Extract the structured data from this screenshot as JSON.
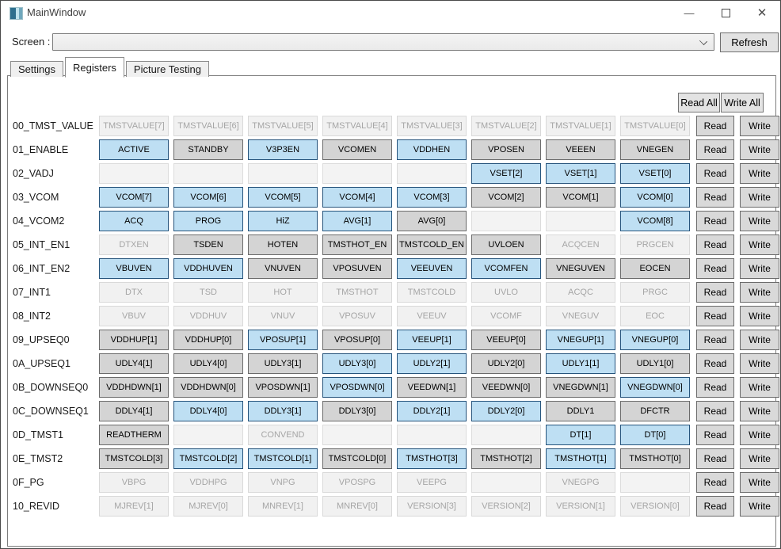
{
  "window": {
    "title": "MainWindow"
  },
  "toolbar": {
    "screen_label": "Screen :",
    "combo_value": "",
    "refresh_label": "Refresh"
  },
  "tabs": [
    {
      "label": "Settings",
      "active": false
    },
    {
      "label": "Registers",
      "active": true
    },
    {
      "label": "Picture Testing",
      "active": false
    }
  ],
  "actions": {
    "read_all": "Read All",
    "write_all": "Write All",
    "read": "Read",
    "write": "Write"
  },
  "colors": {
    "bit_on_bg": "#bedff3",
    "bit_on_border": "#26547c",
    "bit_off_bg": "#d4d4d4",
    "bit_disabled_text": "#a5a5a5"
  },
  "registers": [
    {
      "name": "00_TMST_VALUE",
      "bits": [
        {
          "label": "TMSTVALUE[7]",
          "state": "disabled"
        },
        {
          "label": "TMSTVALUE[6]",
          "state": "disabled"
        },
        {
          "label": "TMSTVALUE[5]",
          "state": "disabled"
        },
        {
          "label": "TMSTVALUE[4]",
          "state": "disabled"
        },
        {
          "label": "TMSTVALUE[3]",
          "state": "disabled"
        },
        {
          "label": "TMSTVALUE[2]",
          "state": "disabled"
        },
        {
          "label": "TMSTVALUE[1]",
          "state": "disabled"
        },
        {
          "label": "TMSTVALUE[0]",
          "state": "disabled"
        }
      ]
    },
    {
      "name": "01_ENABLE",
      "bits": [
        {
          "label": "ACTIVE",
          "state": "on"
        },
        {
          "label": "STANDBY",
          "state": "off"
        },
        {
          "label": "V3P3EN",
          "state": "on"
        },
        {
          "label": "VCOMEN",
          "state": "off"
        },
        {
          "label": "VDDHEN",
          "state": "on"
        },
        {
          "label": "VPOSEN",
          "state": "off"
        },
        {
          "label": "VEEEN",
          "state": "off"
        },
        {
          "label": "VNEGEN",
          "state": "off"
        }
      ]
    },
    {
      "name": "02_VADJ",
      "bits": [
        {
          "label": "",
          "state": "empty"
        },
        {
          "label": "",
          "state": "empty"
        },
        {
          "label": "",
          "state": "empty"
        },
        {
          "label": "",
          "state": "empty"
        },
        {
          "label": "",
          "state": "empty"
        },
        {
          "label": "VSET[2]",
          "state": "on"
        },
        {
          "label": "VSET[1]",
          "state": "on"
        },
        {
          "label": "VSET[0]",
          "state": "on"
        }
      ]
    },
    {
      "name": "03_VCOM",
      "bits": [
        {
          "label": "VCOM[7]",
          "state": "on"
        },
        {
          "label": "VCOM[6]",
          "state": "on"
        },
        {
          "label": "VCOM[5]",
          "state": "on"
        },
        {
          "label": "VCOM[4]",
          "state": "on"
        },
        {
          "label": "VCOM[3]",
          "state": "on"
        },
        {
          "label": "VCOM[2]",
          "state": "off"
        },
        {
          "label": "VCOM[1]",
          "state": "off"
        },
        {
          "label": "VCOM[0]",
          "state": "on"
        }
      ]
    },
    {
      "name": "04_VCOM2",
      "bits": [
        {
          "label": "ACQ",
          "state": "on"
        },
        {
          "label": "PROG",
          "state": "on"
        },
        {
          "label": "HiZ",
          "state": "on"
        },
        {
          "label": "AVG[1]",
          "state": "on"
        },
        {
          "label": "AVG[0]",
          "state": "off"
        },
        {
          "label": "",
          "state": "empty"
        },
        {
          "label": "",
          "state": "empty"
        },
        {
          "label": "VCOM[8]",
          "state": "on"
        }
      ]
    },
    {
      "name": "05_INT_EN1",
      "bits": [
        {
          "label": "DTXEN",
          "state": "disabled"
        },
        {
          "label": "TSDEN",
          "state": "off"
        },
        {
          "label": "HOTEN",
          "state": "off"
        },
        {
          "label": "TMSTHOT_EN",
          "state": "off"
        },
        {
          "label": "TMSTCOLD_EN",
          "state": "off"
        },
        {
          "label": "UVLOEN",
          "state": "off"
        },
        {
          "label": "ACQCEN",
          "state": "disabled"
        },
        {
          "label": "PRGCEN",
          "state": "disabled"
        }
      ]
    },
    {
      "name": "06_INT_EN2",
      "bits": [
        {
          "label": "VBUVEN",
          "state": "on"
        },
        {
          "label": "VDDHUVEN",
          "state": "on"
        },
        {
          "label": "VNUVEN",
          "state": "off"
        },
        {
          "label": "VPOSUVEN",
          "state": "off"
        },
        {
          "label": "VEEUVEN",
          "state": "on"
        },
        {
          "label": "VCOMFEN",
          "state": "on"
        },
        {
          "label": "VNEGUVEN",
          "state": "off"
        },
        {
          "label": "EOCEN",
          "state": "off"
        }
      ]
    },
    {
      "name": "07_INT1",
      "bits": [
        {
          "label": "DTX",
          "state": "disabled"
        },
        {
          "label": "TSD",
          "state": "disabled"
        },
        {
          "label": "HOT",
          "state": "disabled"
        },
        {
          "label": "TMSTHOT",
          "state": "disabled"
        },
        {
          "label": "TMSTCOLD",
          "state": "disabled"
        },
        {
          "label": "UVLO",
          "state": "disabled"
        },
        {
          "label": "ACQC",
          "state": "disabled"
        },
        {
          "label": "PRGC",
          "state": "disabled"
        }
      ]
    },
    {
      "name": "08_INT2",
      "bits": [
        {
          "label": "VBUV",
          "state": "disabled"
        },
        {
          "label": "VDDHUV",
          "state": "disabled"
        },
        {
          "label": "VNUV",
          "state": "disabled"
        },
        {
          "label": "VPOSUV",
          "state": "disabled"
        },
        {
          "label": "VEEUV",
          "state": "disabled"
        },
        {
          "label": "VCOMF",
          "state": "disabled"
        },
        {
          "label": "VNEGUV",
          "state": "disabled"
        },
        {
          "label": "EOC",
          "state": "disabled"
        }
      ]
    },
    {
      "name": "09_UPSEQ0",
      "bits": [
        {
          "label": "VDDHUP[1]",
          "state": "off"
        },
        {
          "label": "VDDHUP[0]",
          "state": "off"
        },
        {
          "label": "VPOSUP[1]",
          "state": "on"
        },
        {
          "label": "VPOSUP[0]",
          "state": "off"
        },
        {
          "label": "VEEUP[1]",
          "state": "on"
        },
        {
          "label": "VEEUP[0]",
          "state": "off"
        },
        {
          "label": "VNEGUP[1]",
          "state": "on"
        },
        {
          "label": "VNEGUP[0]",
          "state": "on"
        }
      ]
    },
    {
      "name": "0A_UPSEQ1",
      "bits": [
        {
          "label": "UDLY4[1]",
          "state": "off"
        },
        {
          "label": "UDLY4[0]",
          "state": "off"
        },
        {
          "label": "UDLY3[1]",
          "state": "off"
        },
        {
          "label": "UDLY3[0]",
          "state": "on"
        },
        {
          "label": "UDLY2[1]",
          "state": "on"
        },
        {
          "label": "UDLY2[0]",
          "state": "off"
        },
        {
          "label": "UDLY1[1]",
          "state": "on"
        },
        {
          "label": "UDLY1[0]",
          "state": "off"
        }
      ]
    },
    {
      "name": "0B_DOWNSEQ0",
      "bits": [
        {
          "label": "VDDHDWN[1]",
          "state": "off"
        },
        {
          "label": "VDDHDWN[0]",
          "state": "off"
        },
        {
          "label": "VPOSDWN[1]",
          "state": "off"
        },
        {
          "label": "VPOSDWN[0]",
          "state": "on"
        },
        {
          "label": "VEEDWN[1]",
          "state": "off"
        },
        {
          "label": "VEEDWN[0]",
          "state": "off"
        },
        {
          "label": "VNEGDWN[1]",
          "state": "off"
        },
        {
          "label": "VNEGDWN[0]",
          "state": "on"
        }
      ]
    },
    {
      "name": "0C_DOWNSEQ1",
      "bits": [
        {
          "label": "DDLY4[1]",
          "state": "off"
        },
        {
          "label": "DDLY4[0]",
          "state": "on"
        },
        {
          "label": "DDLY3[1]",
          "state": "on"
        },
        {
          "label": "DDLY3[0]",
          "state": "off"
        },
        {
          "label": "DDLY2[1]",
          "state": "on"
        },
        {
          "label": "DDLY2[0]",
          "state": "on"
        },
        {
          "label": "DDLY1",
          "state": "off"
        },
        {
          "label": "DFCTR",
          "state": "off"
        }
      ]
    },
    {
      "name": "0D_TMST1",
      "bits": [
        {
          "label": "READTHERM",
          "state": "off"
        },
        {
          "label": "",
          "state": "empty"
        },
        {
          "label": "CONVEND",
          "state": "disabled"
        },
        {
          "label": "",
          "state": "empty"
        },
        {
          "label": "",
          "state": "empty"
        },
        {
          "label": "",
          "state": "empty"
        },
        {
          "label": "DT[1]",
          "state": "on"
        },
        {
          "label": "DT[0]",
          "state": "on"
        }
      ]
    },
    {
      "name": "0E_TMST2",
      "bits": [
        {
          "label": "TMSTCOLD[3]",
          "state": "off"
        },
        {
          "label": "TMSTCOLD[2]",
          "state": "on"
        },
        {
          "label": "TMSTCOLD[1]",
          "state": "on"
        },
        {
          "label": "TMSTCOLD[0]",
          "state": "off"
        },
        {
          "label": "TMSTHOT[3]",
          "state": "on"
        },
        {
          "label": "TMSTHOT[2]",
          "state": "off"
        },
        {
          "label": "TMSTHOT[1]",
          "state": "on"
        },
        {
          "label": "TMSTHOT[0]",
          "state": "off"
        }
      ]
    },
    {
      "name": "0F_PG",
      "bits": [
        {
          "label": "VBPG",
          "state": "disabled"
        },
        {
          "label": "VDDHPG",
          "state": "disabled"
        },
        {
          "label": "VNPG",
          "state": "disabled"
        },
        {
          "label": "VPOSPG",
          "state": "disabled"
        },
        {
          "label": "VEEPG",
          "state": "disabled"
        },
        {
          "label": "",
          "state": "empty"
        },
        {
          "label": "VNEGPG",
          "state": "disabled"
        },
        {
          "label": "",
          "state": "empty"
        }
      ]
    },
    {
      "name": "10_REVID",
      "bits": [
        {
          "label": "MJREV[1]",
          "state": "disabled"
        },
        {
          "label": "MJREV[0]",
          "state": "disabled"
        },
        {
          "label": "MNREV[1]",
          "state": "disabled"
        },
        {
          "label": "MNREV[0]",
          "state": "disabled"
        },
        {
          "label": "VERSION[3]",
          "state": "disabled"
        },
        {
          "label": "VERSION[2]",
          "state": "disabled"
        },
        {
          "label": "VERSION[1]",
          "state": "disabled"
        },
        {
          "label": "VERSION[0]",
          "state": "disabled"
        }
      ]
    }
  ]
}
